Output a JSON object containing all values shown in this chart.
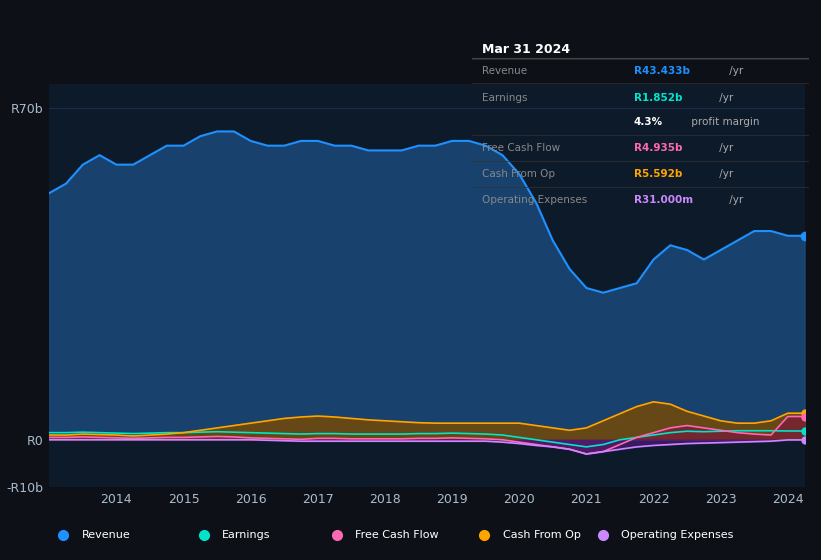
{
  "bg_color": "#0d1117",
  "plot_bg_color": "#0d1a2a",
  "grid_color": "#1e3050",
  "title_box": {
    "date": "Mar 31 2024",
    "rows": [
      {
        "label": "Revenue",
        "value": "R43.433b",
        "value_color": "#00aaff",
        "suffix": " /yr"
      },
      {
        "label": "Earnings",
        "value": "R1.852b",
        "value_color": "#00e5cc",
        "suffix": " /yr"
      },
      {
        "label": "",
        "value": "4.3%",
        "value_color": "#ffffff",
        "suffix": " profit margin"
      },
      {
        "label": "Free Cash Flow",
        "value": "R4.935b",
        "value_color": "#ff69b4",
        "suffix": " /yr"
      },
      {
        "label": "Cash From Op",
        "value": "R5.592b",
        "value_color": "#ffa500",
        "suffix": " /yr"
      },
      {
        "label": "Operating Expenses",
        "value": "R31.000m",
        "value_color": "#cc88ff",
        "suffix": " /yr"
      }
    ]
  },
  "ylim": [
    -10,
    75
  ],
  "yticks": [
    -10,
    0,
    70
  ],
  "ytick_labels": [
    "-R10b",
    "R0",
    "R70b"
  ],
  "years": [
    2013.0,
    2013.25,
    2013.5,
    2013.75,
    2014.0,
    2014.25,
    2014.5,
    2014.75,
    2015.0,
    2015.25,
    2015.5,
    2015.75,
    2016.0,
    2016.25,
    2016.5,
    2016.75,
    2017.0,
    2017.25,
    2017.5,
    2017.75,
    2018.0,
    2018.25,
    2018.5,
    2018.75,
    2019.0,
    2019.25,
    2019.5,
    2019.75,
    2020.0,
    2020.25,
    2020.5,
    2020.75,
    2021.0,
    2021.25,
    2021.5,
    2021.75,
    2022.0,
    2022.25,
    2022.5,
    2022.75,
    2023.0,
    2023.25,
    2023.5,
    2023.75,
    2024.0,
    2024.25
  ],
  "revenue": [
    52,
    54,
    58,
    60,
    58,
    58,
    60,
    62,
    62,
    64,
    65,
    65,
    63,
    62,
    62,
    63,
    63,
    62,
    62,
    61,
    61,
    61,
    62,
    62,
    63,
    63,
    62,
    60,
    56,
    50,
    42,
    36,
    32,
    31,
    32,
    33,
    38,
    41,
    40,
    38,
    40,
    42,
    44,
    44,
    43,
    43
  ],
  "earnings": [
    1.5,
    1.5,
    1.6,
    1.5,
    1.4,
    1.3,
    1.4,
    1.5,
    1.5,
    1.6,
    1.7,
    1.6,
    1.5,
    1.4,
    1.3,
    1.2,
    1.3,
    1.3,
    1.2,
    1.2,
    1.2,
    1.2,
    1.3,
    1.3,
    1.4,
    1.3,
    1.2,
    1.0,
    0.5,
    0.0,
    -0.5,
    -1.0,
    -1.5,
    -1.0,
    0.0,
    0.5,
    1.0,
    1.5,
    1.8,
    1.7,
    1.8,
    1.9,
    1.9,
    1.9,
    1.85,
    1.85
  ],
  "free_cash_flow": [
    0.5,
    0.5,
    0.6,
    0.5,
    0.4,
    0.3,
    0.4,
    0.5,
    0.5,
    0.6,
    0.7,
    0.6,
    0.4,
    0.3,
    0.2,
    0.1,
    0.3,
    0.3,
    0.2,
    0.2,
    0.2,
    0.2,
    0.3,
    0.3,
    0.4,
    0.3,
    0.2,
    0.0,
    -0.5,
    -1.0,
    -1.5,
    -2.0,
    -3.0,
    -2.5,
    -1.0,
    0.5,
    1.5,
    2.5,
    3.0,
    2.5,
    2.0,
    1.5,
    1.2,
    1.0,
    4.9,
    4.9
  ],
  "cash_from_op": [
    1.0,
    1.0,
    1.2,
    1.1,
    1.0,
    0.8,
    1.0,
    1.2,
    1.5,
    2.0,
    2.5,
    3.0,
    3.5,
    4.0,
    4.5,
    4.8,
    5.0,
    4.8,
    4.5,
    4.2,
    4.0,
    3.8,
    3.6,
    3.5,
    3.5,
    3.5,
    3.5,
    3.5,
    3.5,
    3.0,
    2.5,
    2.0,
    2.5,
    4.0,
    5.5,
    7.0,
    8.0,
    7.5,
    6.0,
    5.0,
    4.0,
    3.5,
    3.5,
    4.0,
    5.6,
    5.6
  ],
  "operating_expenses": [
    0.0,
    0.0,
    0.0,
    0.0,
    0.0,
    0.0,
    0.0,
    0.0,
    0.0,
    0.0,
    0.0,
    0.0,
    0.0,
    -0.1,
    -0.2,
    -0.3,
    -0.3,
    -0.3,
    -0.3,
    -0.3,
    -0.3,
    -0.3,
    -0.3,
    -0.3,
    -0.3,
    -0.3,
    -0.3,
    -0.5,
    -0.8,
    -1.2,
    -1.5,
    -2.0,
    -3.0,
    -2.5,
    -2.0,
    -1.5,
    -1.2,
    -1.0,
    -0.8,
    -0.7,
    -0.6,
    -0.5,
    -0.4,
    -0.3,
    -0.03,
    -0.03
  ],
  "revenue_color": "#1e90ff",
  "revenue_fill": "#1a4a7a",
  "earnings_color": "#00e5cc",
  "earnings_fill": "#004d44",
  "fcf_color": "#ff69b4",
  "fcf_fill": "#7a1a3a",
  "cashop_color": "#ffa500",
  "cashop_fill": "#7a4a00",
  "opex_color": "#cc88ff",
  "opex_fill": "#4a1a7a",
  "legend_items": [
    {
      "label": "Revenue",
      "color": "#1e90ff"
    },
    {
      "label": "Earnings",
      "color": "#00e5cc"
    },
    {
      "label": "Free Cash Flow",
      "color": "#ff69b4"
    },
    {
      "label": "Cash From Op",
      "color": "#ffa500"
    },
    {
      "label": "Operating Expenses",
      "color": "#cc88ff"
    }
  ]
}
